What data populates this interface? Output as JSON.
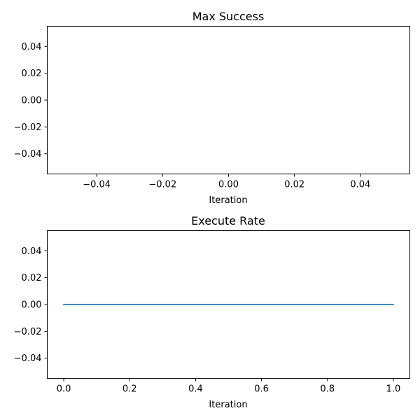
{
  "chart_data": [
    {
      "type": "line",
      "title": "Max Success",
      "xlabel": "Iteration",
      "ylabel": "",
      "xlim": [
        -0.055,
        0.055
      ],
      "ylim": [
        -0.055,
        0.055
      ],
      "xticks": [
        -0.04,
        -0.02,
        0.0,
        0.02,
        0.04
      ],
      "xtick_labels": [
        "−0.04",
        "−0.02",
        "0.00",
        "0.02",
        "0.04"
      ],
      "yticks": [
        0.04,
        0.02,
        0.0,
        -0.02,
        -0.04
      ],
      "ytick_labels": [
        "0.04",
        "0.02",
        "0.00",
        "−0.02",
        "−0.04"
      ],
      "series": []
    },
    {
      "type": "line",
      "title": "Execute Rate",
      "xlabel": "Iteration",
      "ylabel": "",
      "xlim": [
        -0.05,
        1.05
      ],
      "ylim": [
        -0.055,
        0.055
      ],
      "xticks": [
        0.0,
        0.2,
        0.4,
        0.6,
        0.8,
        1.0
      ],
      "xtick_labels": [
        "0.0",
        "0.2",
        "0.4",
        "0.6",
        "0.8",
        "1.0"
      ],
      "yticks": [
        0.04,
        0.02,
        0.0,
        -0.02,
        -0.04
      ],
      "ytick_labels": [
        "0.04",
        "0.02",
        "0.00",
        "−0.02",
        "−0.04"
      ],
      "series": [
        {
          "color": "#1f77b4",
          "x": [
            0,
            1
          ],
          "y": [
            0,
            0
          ]
        }
      ]
    }
  ]
}
